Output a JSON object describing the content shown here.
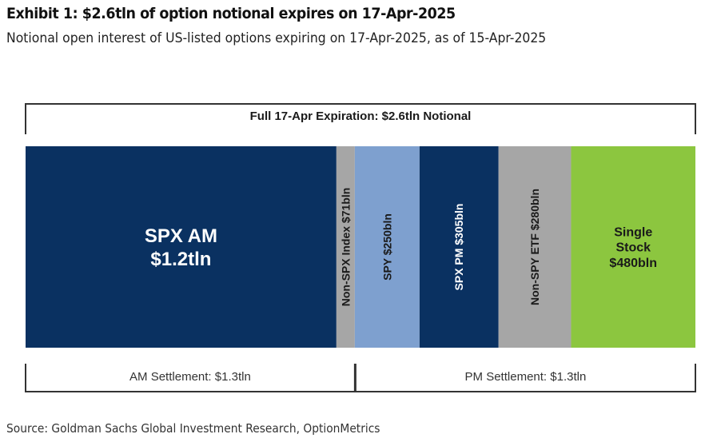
{
  "title": "Exhibit 1: $2.6tln of option notional expires on 17-Apr-2025",
  "subtitle": "Notional open interest of US-listed options expiring on 17-Apr-2025, as of 15-Apr-2025",
  "source": "Source: Goldman Sachs Global Investment Research, OptionMetrics",
  "chart_data": {
    "type": "bar",
    "orientation": "stacked-horizontal-100",
    "unit": "USD bln notional",
    "top_bracket_label": "Full 17-Apr Expiration: $2.6tln Notional",
    "bottom_brackets": [
      {
        "label": "AM Settlement: $1.3tln",
        "segments": [
          "SPX AM",
          "Non-SPX Index"
        ]
      },
      {
        "label": "PM Settlement: $1.3tln",
        "segments": [
          "SPY",
          "SPX PM",
          "Non-SPY ETF",
          "Single Stock"
        ]
      }
    ],
    "segments": [
      {
        "name": "SPX AM",
        "value": 1200,
        "lines": [
          "SPX AM",
          "$1.2tln"
        ],
        "color": "#0a3161",
        "text_color": "#ffffff",
        "vertical": false,
        "size": 24
      },
      {
        "name": "Non-SPX Index",
        "value": 71,
        "lines": [
          "Non-SPX Index $71bln"
        ],
        "color": "#a6a6a6",
        "text_color": "#1a1a1a",
        "vertical": true,
        "size": 14
      },
      {
        "name": "SPY",
        "value": 250,
        "lines": [
          "SPY $250bln"
        ],
        "color": "#7ea0cf",
        "text_color": "#1a1a1a",
        "vertical": true,
        "size": 14
      },
      {
        "name": "SPX PM",
        "value": 305,
        "lines": [
          "SPX PM $305bln"
        ],
        "color": "#0a3161",
        "text_color": "#ffffff",
        "vertical": true,
        "size": 14
      },
      {
        "name": "Non-SPY ETF",
        "value": 280,
        "lines": [
          "Non-SPY ETF $280bln"
        ],
        "color": "#a6a6a6",
        "text_color": "#1a1a1a",
        "vertical": true,
        "size": 14
      },
      {
        "name": "Single Stock",
        "value": 480,
        "lines": [
          "Single",
          "Stock",
          "$480bln"
        ],
        "color": "#8cc63f",
        "text_color": "#1a1a1a",
        "vertical": false,
        "size": 16
      }
    ]
  }
}
